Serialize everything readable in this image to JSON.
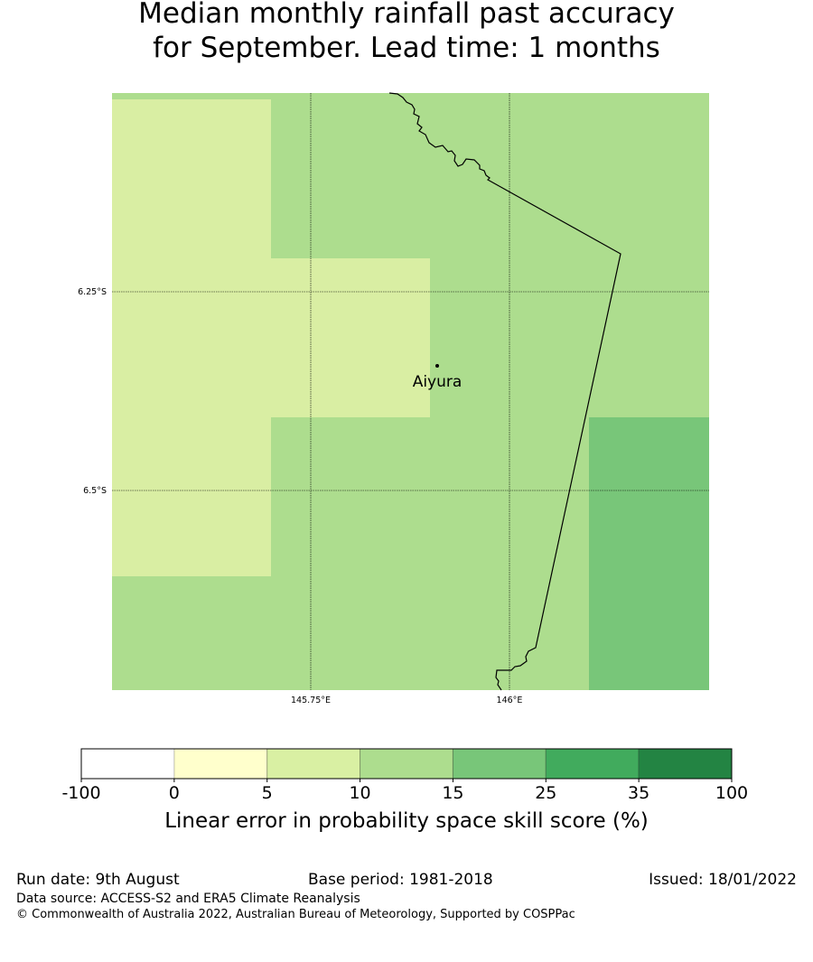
{
  "title": {
    "line1": "Median monthly rainfall past accuracy",
    "line2": "for September. Lead time: 1 months"
  },
  "map": {
    "location_label": "Aiyura",
    "lat_labels": [
      "6.25°S",
      "6.5°S"
    ],
    "lon_labels": [
      "145.75°E",
      "146°E"
    ],
    "grid_colors": {
      "bin_5_10": "#d9eea3",
      "bin_10_15": "#addd8e",
      "bin_15_25": "#78c679"
    }
  },
  "colorbar": {
    "ticks": [
      "-100",
      "0",
      "5",
      "10",
      "15",
      "25",
      "35",
      "100"
    ],
    "colors": [
      "#ffffff",
      "#ffffcc",
      "#d9f0a3",
      "#addd8e",
      "#78c679",
      "#41ab5d",
      "#238443"
    ],
    "label": "Linear error in probability space skill score (%)"
  },
  "footer": {
    "run_date": "Run date: 9th August",
    "base_period": "Base period: 1981-2018",
    "issued": "Issued: 18/01/2022",
    "data_source": "Data source: ACCESS-S2 and ERA5 Climate Reanalysis",
    "copyright": "© Commonwealth of Australia 2022, Australian Bureau of Meteorology, Supported by COSPPac"
  }
}
